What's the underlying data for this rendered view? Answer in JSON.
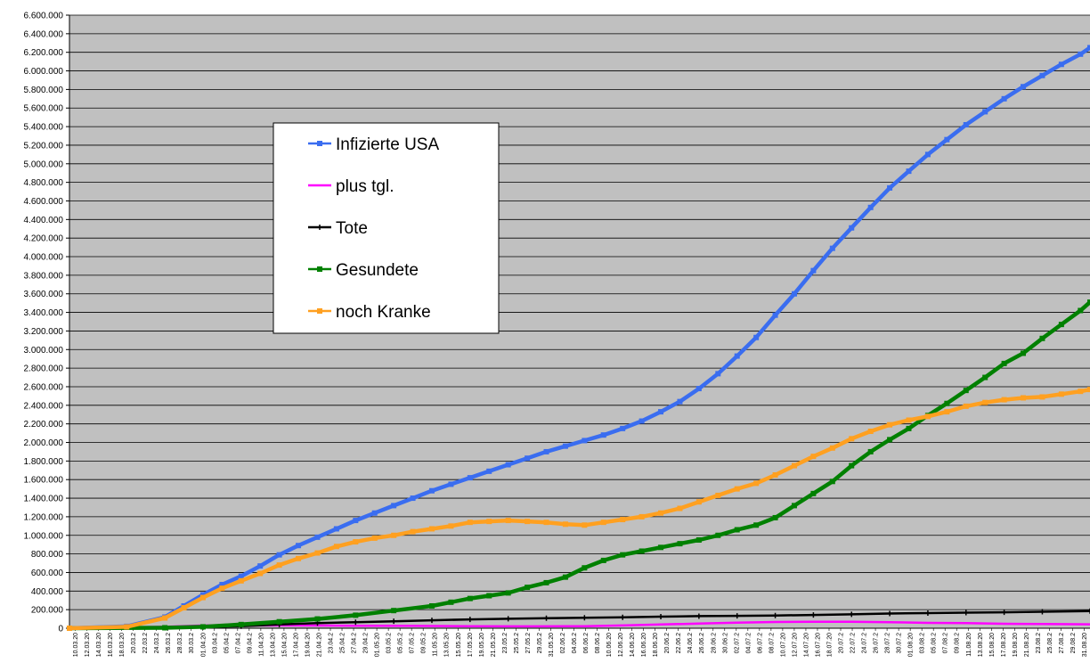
{
  "chart_data": {
    "type": "line",
    "title": "",
    "xlabel": "",
    "ylabel": "",
    "ylim": [
      0,
      6600000
    ],
    "y_ticks": [
      "0",
      "200.000",
      "400.000",
      "600.000",
      "800.000",
      "1.000.000",
      "1.200.000",
      "1.400.000",
      "1.600.000",
      "1.800.000",
      "2.000.000",
      "2.200.000",
      "2.400.000",
      "2.600.000",
      "2.800.000",
      "3.000.000",
      "3.200.000",
      "3.400.000",
      "3.600.000",
      "3.800.000",
      "4.000.000",
      "4.200.000",
      "4.400.000",
      "4.600.000",
      "4.800.000",
      "5.000.000",
      "5.200.000",
      "5.400.000",
      "5.600.000",
      "5.800.000",
      "6.000.000",
      "6.200.000",
      "6.400.000",
      "6.600.000"
    ],
    "x_ticks": [
      "10.03.20",
      "12.03.20",
      "14.03.20",
      "16.03.20",
      "18.03.20",
      "20.03.2",
      "22.03.2",
      "24.03.2",
      "26.03.2",
      "28.03.2",
      "30.03.2",
      "01.04.20",
      "03.04.2",
      "05.04.2",
      "07.04.2",
      "09.04.2",
      "11.04.20",
      "13.04.20",
      "15.04.20",
      "17.04.20",
      "19.04.20",
      "21.04.20",
      "23.04.2",
      "25.04.2",
      "27.04.2",
      "29.04.2",
      "01.05.20",
      "03.05.2",
      "05.05.2",
      "07.05.2",
      "09.05.2",
      "11.05.20",
      "13.05.20",
      "15.05.20",
      "17.05.20",
      "19.05.20",
      "21.05.20",
      "23.05.2",
      "25.05.2",
      "27.05.2",
      "29.05.2",
      "31.05.20",
      "02.06.2",
      "04.06.2",
      "06.06.2",
      "08.06.2",
      "10.06.20",
      "12.06.20",
      "14.06.20",
      "16.06.20",
      "18.06.20",
      "20.06.2",
      "22.06.2",
      "24.06.2",
      "26.06.2",
      "28.06.2",
      "30.06.2",
      "02.07.2",
      "04.07.2",
      "06.07.2",
      "08.07.2",
      "10.07.20",
      "12.07.20",
      "14.07.20",
      "16.07.20",
      "18.07.20",
      "20.07.2",
      "22.07.2",
      "24.07.2",
      "26.07.2",
      "28.07.2",
      "30.07.2",
      "01.08.20",
      "03.08.2",
      "05.08.2",
      "07.08.2",
      "09.08.2",
      "11.08.20",
      "13.08.20",
      "15.08.20",
      "17.08.20",
      "19.08.20",
      "21.08.20",
      "23.08.2",
      "25.08.2",
      "27.08.2",
      "29.08.2",
      "31.08.20"
    ],
    "legend_position": "upper-left inside plot",
    "grid": true,
    "background_color": "#c0c0c0",
    "series": [
      {
        "name": "Infizierte USA",
        "color": "#3a6df0",
        "marker": "square",
        "points": [
          [
            0,
            0
          ],
          [
            6,
            20000
          ],
          [
            10,
            120000
          ],
          [
            12,
            240000
          ],
          [
            14,
            360000
          ],
          [
            16,
            470000
          ],
          [
            18,
            560000
          ],
          [
            20,
            670000
          ],
          [
            22,
            790000
          ],
          [
            24,
            890000
          ],
          [
            26,
            980000
          ],
          [
            28,
            1070000
          ],
          [
            30,
            1160000
          ],
          [
            32,
            1240000
          ],
          [
            34,
            1320000
          ],
          [
            36,
            1400000
          ],
          [
            38,
            1480000
          ],
          [
            40,
            1550000
          ],
          [
            42,
            1620000
          ],
          [
            44,
            1690000
          ],
          [
            46,
            1760000
          ],
          [
            48,
            1830000
          ],
          [
            50,
            1900000
          ],
          [
            52,
            1960000
          ],
          [
            54,
            2020000
          ],
          [
            56,
            2080000
          ],
          [
            58,
            2150000
          ],
          [
            60,
            2230000
          ],
          [
            62,
            2330000
          ],
          [
            64,
            2440000
          ],
          [
            66,
            2580000
          ],
          [
            68,
            2740000
          ],
          [
            70,
            2930000
          ],
          [
            72,
            3130000
          ],
          [
            74,
            3370000
          ],
          [
            76,
            3600000
          ],
          [
            78,
            3850000
          ],
          [
            80,
            4090000
          ],
          [
            82,
            4310000
          ],
          [
            84,
            4530000
          ],
          [
            86,
            4740000
          ],
          [
            88,
            4920000
          ],
          [
            90,
            5100000
          ],
          [
            92,
            5260000
          ],
          [
            94,
            5420000
          ],
          [
            96,
            5560000
          ],
          [
            98,
            5700000
          ],
          [
            100,
            5830000
          ],
          [
            102,
            5950000
          ],
          [
            104,
            6070000
          ],
          [
            106,
            6180000
          ],
          [
            107,
            6250000
          ]
        ]
      },
      {
        "name": "plus tgl.",
        "color": "#ff00ff",
        "marker": "dash",
        "points": [
          [
            0,
            0
          ],
          [
            10,
            15000
          ],
          [
            14,
            30000
          ],
          [
            18,
            30000
          ],
          [
            24,
            30000
          ],
          [
            30,
            27000
          ],
          [
            36,
            25000
          ],
          [
            42,
            22000
          ],
          [
            48,
            20000
          ],
          [
            54,
            22000
          ],
          [
            58,
            30000
          ],
          [
            62,
            40000
          ],
          [
            66,
            50000
          ],
          [
            70,
            60000
          ],
          [
            74,
            67000
          ],
          [
            78,
            70000
          ],
          [
            82,
            70000
          ],
          [
            86,
            65000
          ],
          [
            90,
            58000
          ],
          [
            94,
            55000
          ],
          [
            98,
            48000
          ],
          [
            102,
            45000
          ],
          [
            107,
            42000
          ]
        ]
      },
      {
        "name": "Tote",
        "color": "#000000",
        "marker": "plus",
        "points": [
          [
            0,
            0
          ],
          [
            10,
            5000
          ],
          [
            14,
            12000
          ],
          [
            18,
            22000
          ],
          [
            22,
            40000
          ],
          [
            26,
            55000
          ],
          [
            30,
            65000
          ],
          [
            34,
            75000
          ],
          [
            38,
            85000
          ],
          [
            42,
            95000
          ],
          [
            46,
            102000
          ],
          [
            50,
            108000
          ],
          [
            54,
            113000
          ],
          [
            58,
            118000
          ],
          [
            62,
            125000
          ],
          [
            66,
            130000
          ],
          [
            70,
            133000
          ],
          [
            74,
            137000
          ],
          [
            78,
            143000
          ],
          [
            82,
            150000
          ],
          [
            86,
            158000
          ],
          [
            90,
            163000
          ],
          [
            94,
            168000
          ],
          [
            98,
            172000
          ],
          [
            102,
            177000
          ],
          [
            107,
            185000
          ]
        ]
      },
      {
        "name": "Gesundete",
        "color": "#008000",
        "marker": "square",
        "points": [
          [
            0,
            0
          ],
          [
            10,
            5000
          ],
          [
            14,
            15000
          ],
          [
            18,
            40000
          ],
          [
            22,
            70000
          ],
          [
            26,
            100000
          ],
          [
            30,
            140000
          ],
          [
            34,
            190000
          ],
          [
            38,
            240000
          ],
          [
            40,
            280000
          ],
          [
            42,
            320000
          ],
          [
            44,
            350000
          ],
          [
            46,
            380000
          ],
          [
            48,
            440000
          ],
          [
            50,
            490000
          ],
          [
            52,
            550000
          ],
          [
            54,
            650000
          ],
          [
            56,
            730000
          ],
          [
            58,
            790000
          ],
          [
            60,
            830000
          ],
          [
            62,
            870000
          ],
          [
            64,
            910000
          ],
          [
            66,
            950000
          ],
          [
            68,
            1000000
          ],
          [
            70,
            1060000
          ],
          [
            72,
            1110000
          ],
          [
            74,
            1190000
          ],
          [
            76,
            1320000
          ],
          [
            78,
            1450000
          ],
          [
            80,
            1580000
          ],
          [
            82,
            1750000
          ],
          [
            84,
            1900000
          ],
          [
            86,
            2030000
          ],
          [
            88,
            2150000
          ],
          [
            90,
            2290000
          ],
          [
            92,
            2420000
          ],
          [
            94,
            2560000
          ],
          [
            96,
            2700000
          ],
          [
            98,
            2850000
          ],
          [
            100,
            2960000
          ],
          [
            102,
            3120000
          ],
          [
            104,
            3270000
          ],
          [
            106,
            3420000
          ],
          [
            107,
            3510000
          ]
        ]
      },
      {
        "name": "noch Kranke",
        "color": "#ffa020",
        "marker": "square",
        "points": [
          [
            0,
            0
          ],
          [
            6,
            15000
          ],
          [
            10,
            110000
          ],
          [
            12,
            220000
          ],
          [
            14,
            330000
          ],
          [
            16,
            430000
          ],
          [
            18,
            510000
          ],
          [
            20,
            590000
          ],
          [
            22,
            680000
          ],
          [
            24,
            750000
          ],
          [
            26,
            810000
          ],
          [
            28,
            880000
          ],
          [
            30,
            930000
          ],
          [
            32,
            970000
          ],
          [
            34,
            1000000
          ],
          [
            36,
            1040000
          ],
          [
            38,
            1070000
          ],
          [
            40,
            1100000
          ],
          [
            42,
            1140000
          ],
          [
            44,
            1150000
          ],
          [
            46,
            1160000
          ],
          [
            48,
            1150000
          ],
          [
            50,
            1140000
          ],
          [
            52,
            1120000
          ],
          [
            54,
            1110000
          ],
          [
            56,
            1140000
          ],
          [
            58,
            1170000
          ],
          [
            60,
            1200000
          ],
          [
            62,
            1240000
          ],
          [
            64,
            1290000
          ],
          [
            66,
            1360000
          ],
          [
            68,
            1430000
          ],
          [
            70,
            1500000
          ],
          [
            72,
            1560000
          ],
          [
            74,
            1650000
          ],
          [
            76,
            1750000
          ],
          [
            78,
            1850000
          ],
          [
            80,
            1940000
          ],
          [
            82,
            2040000
          ],
          [
            84,
            2120000
          ],
          [
            86,
            2190000
          ],
          [
            88,
            2240000
          ],
          [
            90,
            2280000
          ],
          [
            92,
            2330000
          ],
          [
            94,
            2390000
          ],
          [
            96,
            2430000
          ],
          [
            98,
            2460000
          ],
          [
            100,
            2480000
          ],
          [
            102,
            2490000
          ],
          [
            104,
            2520000
          ],
          [
            106,
            2550000
          ],
          [
            107,
            2570000
          ]
        ]
      }
    ]
  }
}
